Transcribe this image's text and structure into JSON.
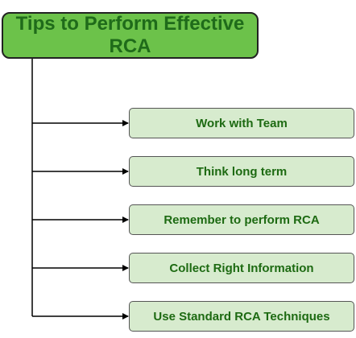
{
  "title": {
    "line1": "Tips to Perform Effective",
    "line2": "RCA"
  },
  "tips": [
    {
      "label": "Work with Team"
    },
    {
      "label": "Think long term"
    },
    {
      "label": "Remember to perform RCA"
    },
    {
      "label": "Collect Right Information"
    },
    {
      "label": "Use Standard RCA Techniques"
    }
  ],
  "colors": {
    "title_fill": "#6cc24a",
    "title_text": "#1f6b1a",
    "tip_fill": "#d7ebce",
    "tip_text": "#1d6a12",
    "connector": "#000000"
  }
}
